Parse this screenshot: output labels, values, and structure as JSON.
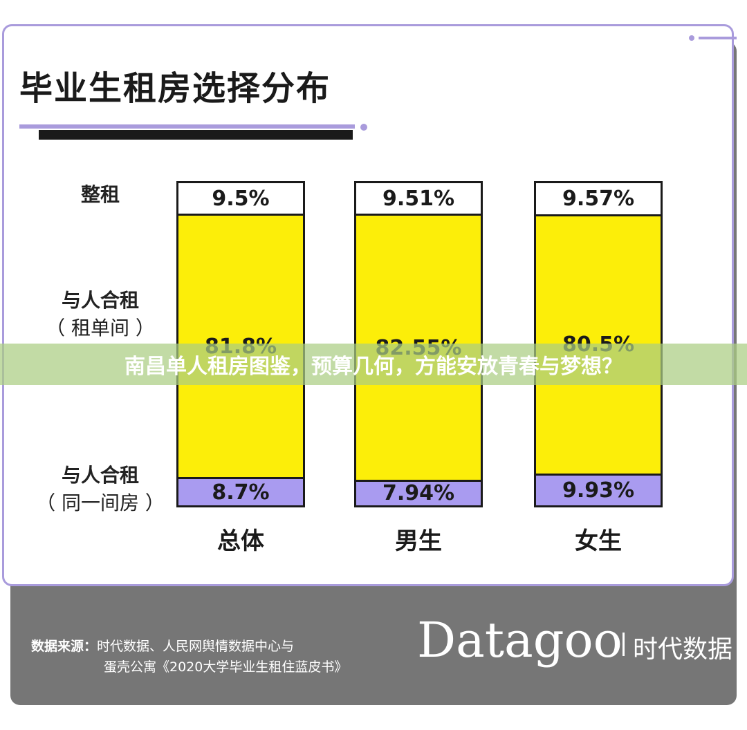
{
  "chart_data": {
    "type": "bar",
    "stacked": true,
    "title": "毕业生租房选择分布",
    "categories": [
      "总体",
      "男生",
      "女生"
    ],
    "series": [
      {
        "name": "整租",
        "values": [
          9.5,
          9.51,
          9.57
        ],
        "labels": [
          "9.5%",
          "9.51%",
          "9.57%"
        ],
        "color": "#ffffff"
      },
      {
        "name": "与人合租（租单间）",
        "values": [
          81.8,
          82.55,
          80.5
        ],
        "labels": [
          "81.8%",
          "82.55%",
          "80.5%"
        ],
        "color": "#fcee09"
      },
      {
        "name": "与人合租（同一间房）",
        "values": [
          8.7,
          7.94,
          9.93
        ],
        "labels": [
          "8.7%",
          "7.94%",
          "9.93%"
        ],
        "color": "#a99bf0"
      }
    ],
    "row_labels": [
      {
        "line1": "整租",
        "line2": ""
      },
      {
        "line1": "与人合租",
        "line2": "（ 租单间 ）"
      },
      {
        "line1": "与人合租",
        "line2": "（ 同一间房 ）"
      }
    ],
    "ylim": [
      0,
      100
    ]
  },
  "banner": "南昌单人租房图鉴，预算几何，方能安放青春与梦想？",
  "footer": {
    "source_label": "数据来源：",
    "source_line1": "时代数据、人民网舆情数据中心与",
    "source_line2": "蛋壳公寓《2020大学毕业生租住蓝皮书》",
    "logo_text": "Datagoo",
    "logo_cn": "时代数据"
  }
}
